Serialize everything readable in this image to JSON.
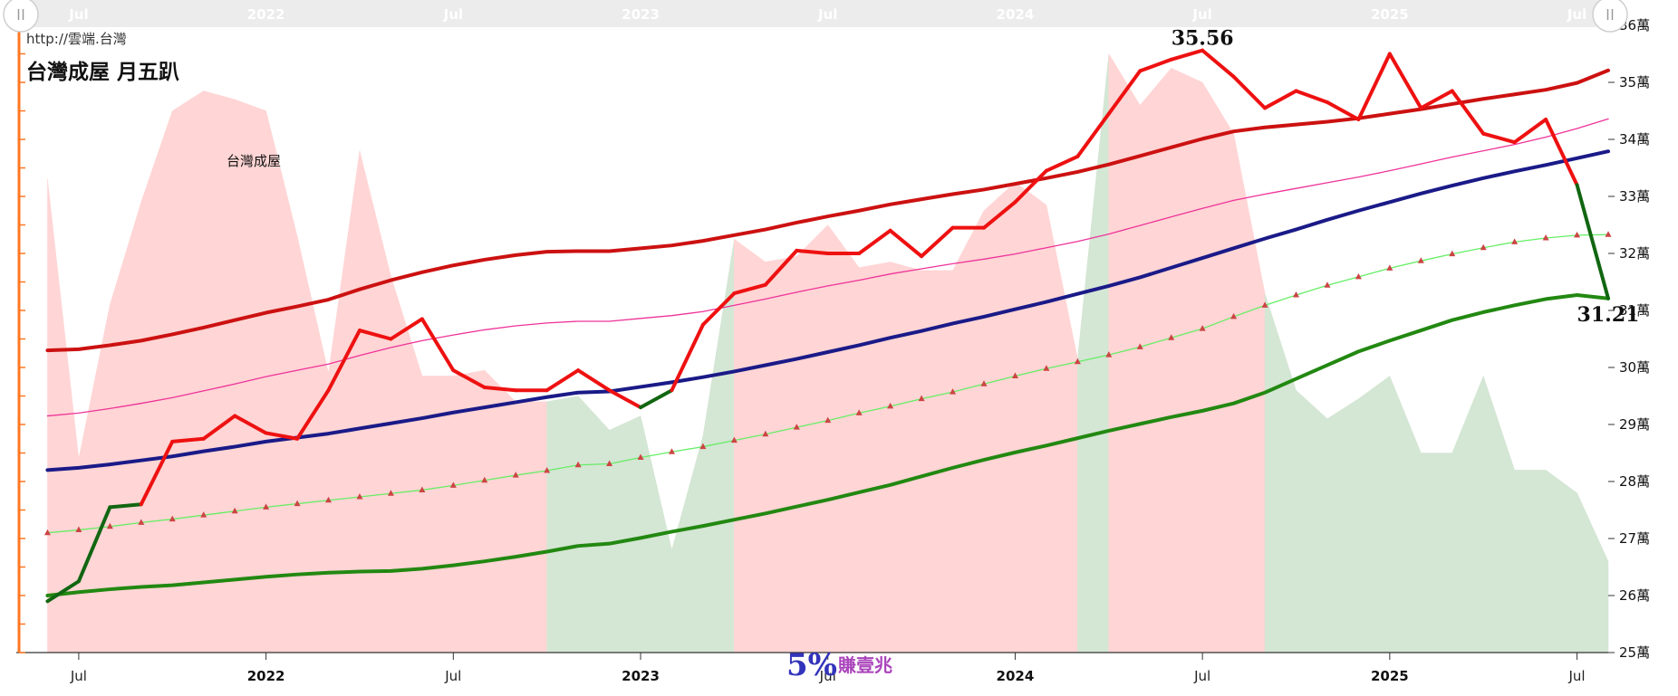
{
  "page": {
    "url_text": "http://雲端.台灣",
    "title": "台灣成屋 月五趴",
    "series_caption": "台灣成屋",
    "brand_big": "5%",
    "brand_small": "賺壹兆"
  },
  "colors": {
    "price": "#ee1111",
    "price_below": "#116611",
    "upper_band": "#cc1111",
    "ma_thin": "#ee3399",
    "middle": "#1a1a88",
    "lower_band": "#228811",
    "dotted": "#66ee66",
    "marker": "#cc4444",
    "area_pos": "#ffd5d5",
    "area_neg": "#d4e6d4",
    "axis_accent": "#ff7722",
    "brand_big": "#3333bb",
    "brand_small": "#aa44bb"
  },
  "navigator": {
    "labels": [
      "Jul",
      "2022",
      "Jul",
      "2023",
      "Jul",
      "2024",
      "Jul",
      "2025",
      "Jul"
    ],
    "handle_left_icon": "grip-icon",
    "handle_right_icon": "grip-icon"
  },
  "chart_data": {
    "type": "line",
    "title": "台灣成屋 月五趴",
    "x_start": "2021-05",
    "x_end": "2025-08",
    "x_ticks": [
      {
        "date": "2021-07",
        "label": "Jul",
        "bold": false
      },
      {
        "date": "2022-01",
        "label": "2022",
        "bold": true
      },
      {
        "date": "2022-07",
        "label": "Jul",
        "bold": false
      },
      {
        "date": "2023-01",
        "label": "2023",
        "bold": true
      },
      {
        "date": "2023-07",
        "label": "Jul",
        "bold": false
      },
      {
        "date": "2024-01",
        "label": "2024",
        "bold": true
      },
      {
        "date": "2024-07",
        "label": "Jul",
        "bold": false
      },
      {
        "date": "2025-01",
        "label": "2025",
        "bold": true
      },
      {
        "date": "2025-07",
        "label": "Jul",
        "bold": false
      }
    ],
    "y_axis": {
      "min": 25,
      "max": 36,
      "unit": "萬",
      "tick_labels": [
        "25萬",
        "26萬",
        "27萬",
        "28萬",
        "29萬",
        "30萬",
        "31萬",
        "32萬",
        "33萬",
        "34萬",
        "35萬",
        "36萬"
      ]
    },
    "months": [
      "2021-06",
      "2021-07",
      "2021-08",
      "2021-09",
      "2021-10",
      "2021-11",
      "2021-12",
      "2022-01",
      "2022-02",
      "2022-03",
      "2022-04",
      "2022-05",
      "2022-06",
      "2022-07",
      "2022-08",
      "2022-09",
      "2022-10",
      "2022-11",
      "2022-12",
      "2023-01",
      "2023-02",
      "2023-03",
      "2023-04",
      "2023-05",
      "2023-06",
      "2023-07",
      "2023-08",
      "2023-09",
      "2023-10",
      "2023-11",
      "2023-12",
      "2024-01",
      "2024-02",
      "2024-03",
      "2024-04",
      "2024-05",
      "2024-06",
      "2024-07",
      "2024-08",
      "2024-09",
      "2024-10",
      "2024-11",
      "2024-12",
      "2025-01",
      "2025-02",
      "2025-03",
      "2025-04",
      "2025-05",
      "2025-06",
      "2025-07",
      "2025-08"
    ],
    "series": [
      {
        "key": "price",
        "values": [
          25.9,
          26.25,
          27.55,
          27.6,
          28.7,
          28.75,
          29.15,
          28.85,
          28.75,
          29.6,
          30.65,
          30.5,
          30.85,
          29.95,
          29.65,
          29.6,
          29.6,
          29.95,
          29.6,
          29.3,
          29.6,
          30.75,
          31.3,
          31.45,
          32.05,
          32,
          32,
          32.4,
          31.95,
          32.45,
          32.45,
          32.9,
          33.45,
          33.7,
          34.45,
          35.2,
          35.4,
          35.56,
          35.1,
          34.55,
          34.85,
          34.65,
          34.35,
          35.5,
          34.55,
          34.85,
          34.1,
          33.95,
          34.35,
          33.2,
          31.21
        ]
      },
      {
        "key": "upper",
        "values": [
          30.3,
          30.32,
          30.39,
          30.47,
          30.58,
          30.7,
          30.83,
          30.96,
          31.07,
          31.19,
          31.37,
          31.53,
          31.67,
          31.79,
          31.89,
          31.97,
          32.03,
          32.04,
          32.04,
          32.09,
          32.14,
          32.22,
          32.32,
          32.42,
          32.54,
          32.65,
          32.75,
          32.86,
          32.95,
          33.04,
          33.12,
          33.22,
          33.32,
          33.43,
          33.56,
          33.71,
          33.86,
          34.01,
          34.14,
          34.21,
          34.26,
          34.31,
          34.37,
          34.45,
          34.53,
          34.62,
          34.71,
          34.79,
          34.87,
          34.99,
          35.21
        ]
      },
      {
        "key": "ma_thin",
        "values": [
          29.15,
          29.2,
          29.28,
          29.37,
          29.47,
          29.59,
          29.71,
          29.84,
          29.95,
          30.06,
          30.21,
          30.35,
          30.47,
          30.57,
          30.66,
          30.73,
          30.78,
          30.81,
          30.81,
          30.86,
          30.91,
          30.98,
          31.09,
          31.2,
          31.32,
          31.43,
          31.53,
          31.64,
          31.73,
          31.82,
          31.9,
          31.99,
          32.1,
          32.21,
          32.34,
          32.49,
          32.64,
          32.79,
          32.93,
          33.04,
          33.14,
          33.24,
          33.34,
          33.45,
          33.57,
          33.69,
          33.8,
          33.91,
          34.04,
          34.19,
          34.36
        ]
      },
      {
        "key": "middle",
        "values": [
          28.2,
          28.24,
          28.3,
          28.37,
          28.44,
          28.53,
          28.61,
          28.7,
          28.77,
          28.84,
          28.93,
          29.02,
          29.11,
          29.21,
          29.3,
          29.39,
          29.48,
          29.56,
          29.58,
          29.66,
          29.74,
          29.83,
          29.93,
          30.04,
          30.15,
          30.27,
          30.39,
          30.52,
          30.64,
          30.77,
          30.89,
          31.02,
          31.15,
          31.29,
          31.43,
          31.58,
          31.75,
          31.92,
          32.09,
          32.26,
          32.42,
          32.59,
          32.75,
          32.9,
          33.05,
          33.19,
          33.32,
          33.44,
          33.55,
          33.67,
          33.79
        ]
      },
      {
        "key": "dotted",
        "values": [
          27.1,
          27.15,
          27.21,
          27.28,
          27.34,
          27.41,
          27.48,
          27.55,
          27.61,
          27.67,
          27.73,
          27.79,
          27.85,
          27.93,
          28.02,
          28.11,
          28.19,
          28.29,
          28.31,
          28.42,
          28.52,
          28.61,
          28.72,
          28.83,
          28.95,
          29.07,
          29.2,
          29.32,
          29.45,
          29.57,
          29.71,
          29.85,
          29.98,
          30.1,
          30.22,
          30.36,
          30.52,
          30.68,
          30.89,
          31.09,
          31.27,
          31.44,
          31.59,
          31.74,
          31.87,
          31.99,
          32.1,
          32.2,
          32.27,
          32.32,
          32.33
        ]
      },
      {
        "key": "lower",
        "values": [
          26,
          26.06,
          26.11,
          26.15,
          26.18,
          26.23,
          26.28,
          26.33,
          26.37,
          26.4,
          26.42,
          26.43,
          26.47,
          26.53,
          26.6,
          26.68,
          26.77,
          26.87,
          26.91,
          27.01,
          27.12,
          27.22,
          27.33,
          27.44,
          27.56,
          27.68,
          27.81,
          27.94,
          28.09,
          28.24,
          28.38,
          28.51,
          28.63,
          28.76,
          28.89,
          29.01,
          29.13,
          29.24,
          29.37,
          29.56,
          29.8,
          30.04,
          30.28,
          30.47,
          30.65,
          30.83,
          30.97,
          31.09,
          31.2,
          31.27,
          31.21
        ]
      },
      {
        "key": "oscillator",
        "values": [
          33.3,
          28.4,
          31.1,
          32.9,
          34.5,
          34.85,
          34.7,
          34.5,
          32.3,
          29.9,
          33.8,
          31.6,
          29.85,
          29.85,
          29.95,
          29.4,
          29.4,
          29.5,
          28.9,
          29.15,
          26.8,
          28.8,
          32.25,
          31.85,
          31.95,
          32.5,
          31.75,
          31.85,
          31.7,
          31.7,
          32.75,
          33.25,
          32.85,
          30.15,
          35.5,
          34.6,
          35.25,
          35.0,
          34.1,
          31.3,
          29.6,
          29.1,
          29.45,
          29.85,
          28.5,
          28.5,
          29.85,
          28.2,
          28.2,
          27.8,
          26.6
        ]
      }
    ],
    "annotations": [
      {
        "label": "35.56",
        "month": "2024-07",
        "value": 35.56,
        "position": "above"
      },
      {
        "label": "31.21",
        "month": "2025-08",
        "value": 31.21,
        "position": "below"
      }
    ]
  }
}
